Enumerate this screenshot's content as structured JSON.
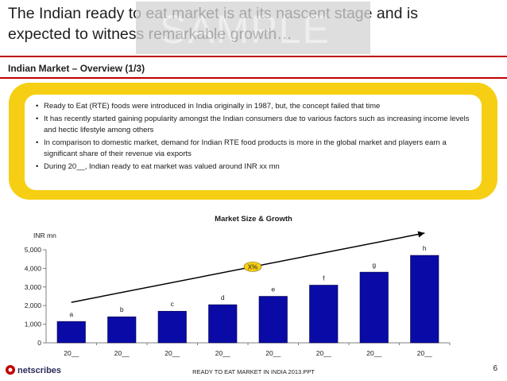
{
  "header": {
    "title": "The Indian ready to eat market is at its nascent stage and is expected to witness remarkable growth…",
    "watermark": "SAMPLE",
    "subtitle": "Indian Market – Overview (1/3)"
  },
  "overview": {
    "bullets": [
      "Ready to Eat (RTE) foods were introduced in India originally in 1987, but, the concept failed that time",
      "It has recently started gaining popularity amongst the Indian consumers due to various factors such as increasing income levels and hectic lifestyle among others",
      "In comparison to domestic market, demand for Indian RTE food products is more in the global market and players earn a significant share of their revenue via exports",
      "During 20__, Indian ready to eat market was valued around INR xx mn"
    ]
  },
  "chart_data": {
    "type": "bar",
    "title": "Market Size & Growth",
    "ylabel": "INR mn",
    "xlabel": "",
    "ylim": [
      0,
      5000
    ],
    "yticks": [
      "0",
      "1,000",
      "2,000",
      "3,000",
      "4,000",
      "5,000"
    ],
    "categories": [
      "20__",
      "20__",
      "20__",
      "20__",
      "20__",
      "20__",
      "20__",
      "20__"
    ],
    "values": [
      1150,
      1400,
      1700,
      2050,
      2500,
      3100,
      3800,
      4700
    ],
    "data_labels": [
      "a",
      "b",
      "c",
      "d",
      "e",
      "f",
      "g",
      "h"
    ],
    "growth_label": "X%",
    "bar_color": "#0a0aa6",
    "grid": false
  },
  "footer": {
    "logo_text": "netscribes",
    "center_text": "READY TO EAT MARKET IN INDIA 2013.PPT",
    "page_number": "6"
  },
  "colors": {
    "accent": "#c00000",
    "callout": "#f6cf14",
    "bar": "#0a0aa6"
  }
}
